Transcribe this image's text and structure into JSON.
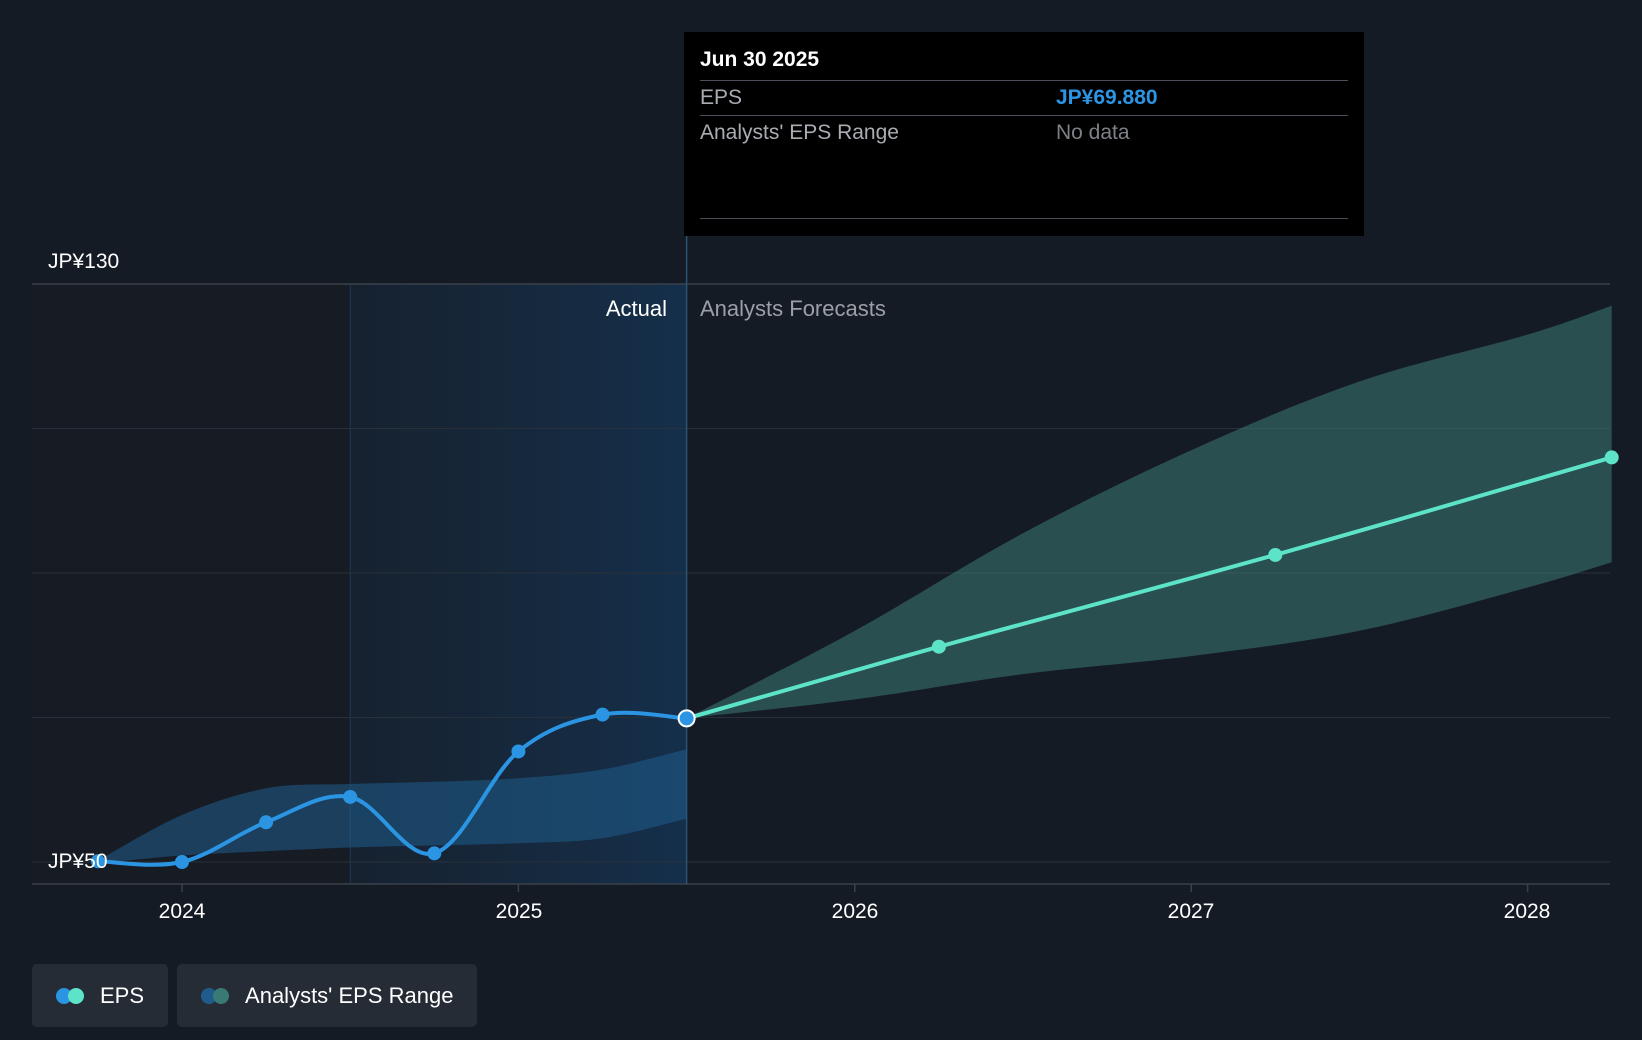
{
  "chart_data": {
    "type": "line",
    "x_ticks": [
      "2024",
      "2025",
      "2026",
      "2027",
      "2028"
    ],
    "y_labels": [
      "JP¥130",
      "JP¥50"
    ],
    "ylim": [
      50,
      130
    ],
    "sections": {
      "actual": "Actual",
      "forecast": "Analysts Forecasts"
    },
    "series": [
      {
        "name": "EPS",
        "color": "#2b95e3",
        "points": [
          {
            "x": 2023.75,
            "y": 50.1
          },
          {
            "x": 2024.0,
            "y": 50.0
          },
          {
            "x": 2024.25,
            "y": 55.5
          },
          {
            "x": 2024.5,
            "y": 59.0
          },
          {
            "x": 2024.75,
            "y": 51.2
          },
          {
            "x": 2025.0,
            "y": 65.3
          },
          {
            "x": 2025.25,
            "y": 70.4
          },
          {
            "x": 2025.5,
            "y": 69.88
          }
        ]
      },
      {
        "name": "EPS",
        "color": "#5de3c8",
        "points": [
          {
            "x": 2025.5,
            "y": 69.88
          },
          {
            "x": 2026.25,
            "y": 79.8
          },
          {
            "x": 2027.25,
            "y": 92.5
          },
          {
            "x": 2028.25,
            "y": 106.0
          }
        ]
      }
    ],
    "range_actual": {
      "name": "Analysts' EPS Range",
      "color": "#1f5c8c",
      "x": [
        2023.75,
        2024.0,
        2024.25,
        2024.5,
        2024.75,
        2025.0,
        2025.25,
        2025.5
      ],
      "high": [
        50.2,
        56.5,
        60.2,
        60.8,
        61.1,
        61.6,
        62.8,
        65.6
      ],
      "low": [
        49.8,
        50.9,
        51.5,
        52.0,
        52.3,
        52.6,
        53.3,
        56.0
      ]
    },
    "range_forecast": {
      "name": "Analysts' EPS Range",
      "color": "#3a7a74",
      "x": [
        2025.5,
        2026.0,
        2026.5,
        2027.0,
        2027.5,
        2028.0,
        2028.25
      ],
      "high": [
        69.88,
        82.0,
        95.5,
        107.0,
        116.5,
        123.0,
        127.0
      ],
      "low": [
        69.88,
        72.5,
        76.0,
        78.5,
        82.0,
        88.0,
        91.5
      ]
    },
    "highlight_point": {
      "x": 2025.5,
      "y": 69.88
    },
    "grid": true
  },
  "tooltip": {
    "date": "Jun 30 2025",
    "eps_label": "EPS",
    "eps_value": "JP¥69.880",
    "range_label": "Analysts' EPS Range",
    "range_value": "No data"
  },
  "legend": {
    "eps": "EPS",
    "range": "Analysts' EPS Range"
  },
  "colors": {
    "background": "#151b24",
    "eps_actual": "#2b95e3",
    "eps_forecast": "#5de3c8",
    "range_actual": "#1f5c8c",
    "range_forecast": "#3a7a74"
  }
}
